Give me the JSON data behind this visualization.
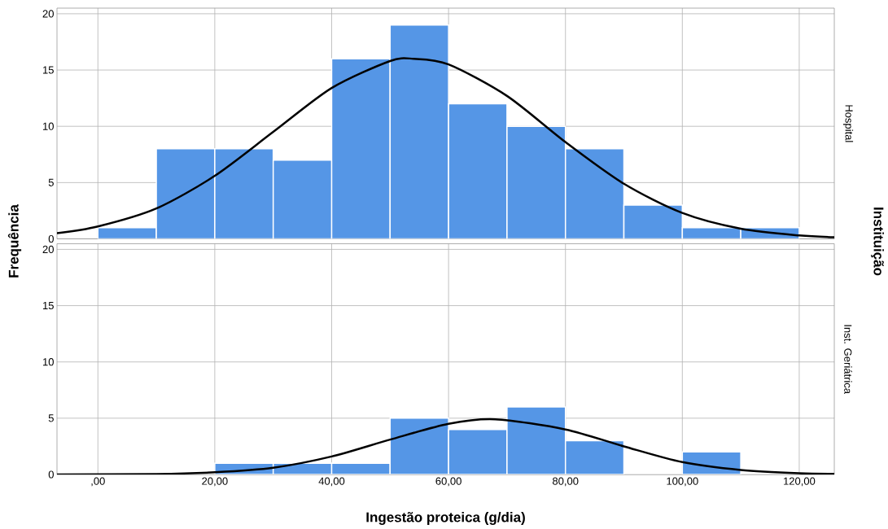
{
  "chart_data": [
    {
      "type": "histogram",
      "bins": [
        0,
        10,
        20,
        30,
        40,
        50,
        60,
        70,
        80,
        90,
        100,
        110,
        120
      ],
      "series": [
        {
          "type": "histogram",
          "color": "#5596e6",
          "values": [
            1,
            8,
            8,
            7,
            16,
            19,
            12,
            10,
            8,
            3,
            1,
            1
          ]
        },
        {
          "type": "line",
          "color": "#000000",
          "x": [
            -7,
            0,
            10,
            20,
            30,
            40,
            50,
            54,
            60,
            70,
            80,
            90,
            100,
            110,
            120,
            126
          ],
          "values": [
            0.5,
            1.1,
            2.7,
            5.6,
            9.5,
            13.4,
            15.8,
            16,
            15.5,
            12.7,
            8.6,
            4.9,
            2.3,
            0.9,
            0.3,
            0.15
          ]
        }
      ],
      "ylabel": "Frequência",
      "annotations": [
        "Hospital",
        "Instituição"
      ],
      "xlim": [
        -7,
        126
      ],
      "ylim": [
        0,
        20.5
      ],
      "xticks": [
        {
          "value": 0,
          "label": null
        },
        {
          "value": 20,
          "label": null
        },
        {
          "value": 40,
          "label": null
        },
        {
          "value": 60,
          "label": null
        },
        {
          "value": 80,
          "label": null
        },
        {
          "value": 100,
          "label": null
        },
        {
          "value": 120,
          "label": null
        }
      ],
      "yticks": [
        0,
        5,
        10,
        15,
        20
      ],
      "grid": true,
      "tick_labels": "y"
    },
    {
      "type": "histogram",
      "bins": [
        0,
        10,
        20,
        30,
        40,
        50,
        60,
        70,
        80,
        90,
        100,
        110,
        120
      ],
      "series": [
        {
          "type": "histogram",
          "color": "#5596e6",
          "values": [
            0,
            0,
            1,
            1,
            1,
            5,
            4,
            6,
            3,
            0,
            2,
            0
          ]
        },
        {
          "type": "line",
          "color": "#000000",
          "x": [
            -7,
            10,
            20,
            30,
            40,
            50,
            60,
            68,
            80,
            90,
            100,
            110,
            120,
            126
          ],
          "values": [
            0,
            0.04,
            0.2,
            0.6,
            1.6,
            3.1,
            4.5,
            4.9,
            4.0,
            2.5,
            1.1,
            0.4,
            0.1,
            0.05
          ]
        }
      ],
      "xlabel": "Ingestão proteica (g/dia)",
      "annotations": [
        "Inst. Geriátrica"
      ],
      "xlim": [
        -7,
        126
      ],
      "ylim": [
        0,
        20.5
      ],
      "xticks": [
        {
          "value": 0,
          "label": ",00"
        },
        {
          "value": 20,
          "label": "20,00"
        },
        {
          "value": 40,
          "label": "40,00"
        },
        {
          "value": 60,
          "label": "60,00"
        },
        {
          "value": 80,
          "label": "80,00"
        },
        {
          "value": 100,
          "label": "100,00"
        },
        {
          "value": 120,
          "label": "120,00"
        }
      ],
      "yticks": [
        0,
        5,
        10,
        15,
        20
      ],
      "grid": true
    }
  ]
}
